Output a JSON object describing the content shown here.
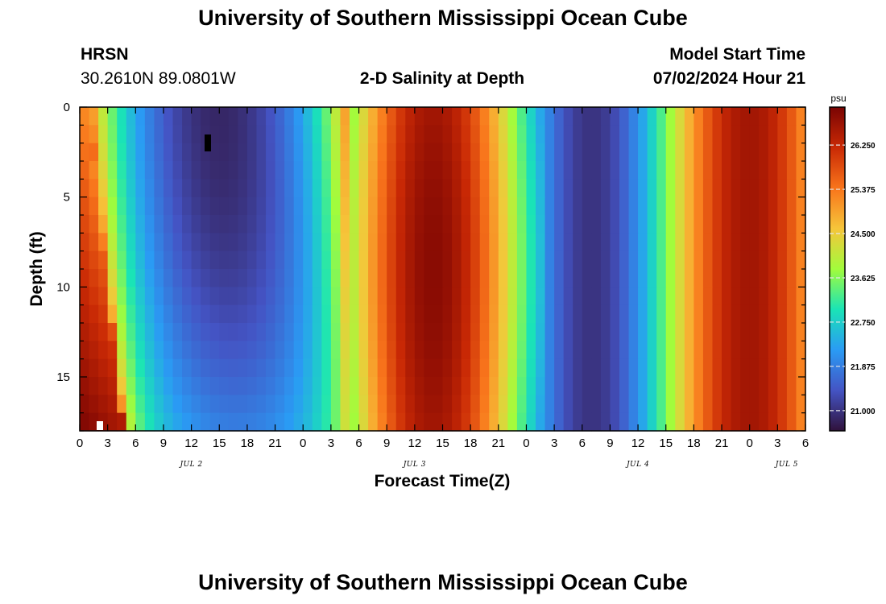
{
  "header": {
    "title": "University of Southern Mississippi Ocean Cube",
    "station": "HRSN",
    "coords": "30.2610N  89.0801W",
    "subtitle": "2-D Salinity at Depth",
    "model_start_label": "Model Start Time",
    "model_start_value": "07/02/2024 Hour 21"
  },
  "footer": {
    "title": "University of Southern Mississippi Ocean Cube"
  },
  "colors": {
    "ramp": [
      "#30123b",
      "#4454c4",
      "#2a9bf4",
      "#1ae4b6",
      "#a2fc3c",
      "#f6c53a",
      "#f8741b",
      "#c92905",
      "#7a0403"
    ]
  },
  "chart_data": {
    "type": "heatmap",
    "title": "2-D Salinity at Depth",
    "xlabel": "Forecast Time(Z)",
    "ylabel": "Depth (ft)",
    "x_hours_range": [
      0,
      78
    ],
    "x_tick_step_hours": 3,
    "x_tick_labels": [
      "0",
      "3",
      "6",
      "9",
      "12",
      "15",
      "18",
      "21",
      "0",
      "3",
      "6",
      "9",
      "12",
      "15",
      "18",
      "21",
      "0",
      "3",
      "6",
      "9",
      "12",
      "15",
      "18",
      "21",
      "0",
      "3",
      "6"
    ],
    "day_labels": [
      {
        "label": "JUL 2",
        "hour": 12
      },
      {
        "label": "JUL 3",
        "hour": 36
      },
      {
        "label": "JUL 4",
        "hour": 60
      },
      {
        "label": "JUL 5",
        "hour": 76
      }
    ],
    "y_depth_range_ft": [
      0,
      18
    ],
    "y_ticks": [
      0,
      5,
      10,
      15
    ],
    "colorbar": {
      "unit": "psu",
      "range": [
        20.6,
        27.0
      ],
      "ticks": [
        "21.000",
        "21.875",
        "22.750",
        "23.625",
        "24.500",
        "25.375",
        "26.250"
      ]
    },
    "grid": false
  }
}
